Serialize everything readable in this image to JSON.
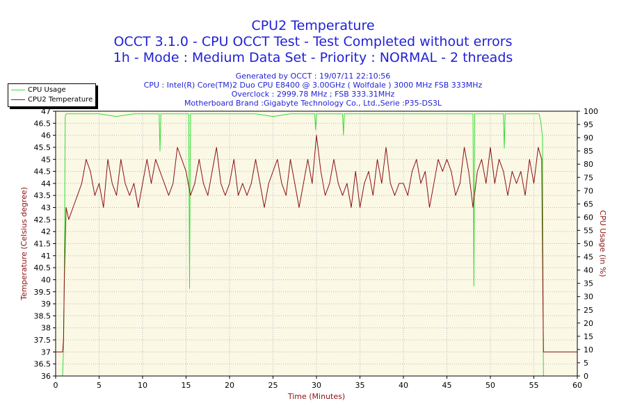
{
  "header": {
    "title": "CPU2 Temperature",
    "subtitle1": "OCCT 3.1.0 - CPU OCCT Test - Test Completed without errors",
    "subtitle2": "1h - Mode : Medium Data Set - Priority : NORMAL - 2 threads",
    "info_lines": [
      "Generated by OCCT : 19/07/11 22:10:56",
      "CPU : Intel(R) Core(TM)2 Duo CPU E8400 @ 3.00GHz ( Wolfdale ) 3000 MHz FSB 333MHz",
      "Overclock : 2999.78 MHz ; FSB 333.31MHz",
      "Motherboard Brand :Gigabyte Technology Co., Ltd.,Serie :P35-DS3L"
    ]
  },
  "legend": {
    "items": [
      {
        "label": "CPU Usage"
      },
      {
        "label": "CPU2 Temperature"
      }
    ]
  },
  "colors": {
    "title": "#1f1fd6",
    "plot_background": "#fbf8e6",
    "grid": "#b8b8b8",
    "usage_line": "#33dd33",
    "temperature_line": "#8b1010",
    "axis_label": "#8b1010"
  },
  "chart_data": {
    "type": "line",
    "xlabel": "Time (Minutes)",
    "ylabel_left": "Temperature (Celsius degree)",
    "ylabel_right": "CPU Usage (in %)",
    "xlim": [
      0,
      60
    ],
    "ylim_left": [
      36,
      47
    ],
    "ylim_right": [
      0,
      100
    ],
    "x_ticks": [
      0,
      5,
      10,
      15,
      20,
      25,
      30,
      35,
      40,
      45,
      50,
      55,
      60
    ],
    "y_ticks_left": [
      "36",
      "36.5",
      "37",
      "37.5",
      "38",
      "38.5",
      "39",
      "39.5",
      "40",
      "40.5",
      "41",
      "41.5",
      "42",
      "42.5",
      "43",
      "43.5",
      "44",
      "44.5",
      "45",
      "45.5",
      "46",
      "46.5",
      "47"
    ],
    "y_ticks_right": [
      0,
      5,
      10,
      15,
      20,
      25,
      30,
      35,
      40,
      45,
      50,
      55,
      60,
      65,
      70,
      75,
      80,
      85,
      90,
      95,
      100
    ],
    "grid": true,
    "legend_position": "top-left",
    "series": [
      {
        "name": "CPU Usage",
        "axis": "right",
        "x": [
          0.8,
          0.9,
          1.0,
          1.1,
          1.2,
          3,
          5,
          7,
          9,
          10,
          11.9,
          12.0,
          12.1,
          14,
          15.3,
          15.4,
          15.5,
          17,
          20,
          23,
          25,
          27,
          29.8,
          29.9,
          30.0,
          32,
          33.0,
          33.1,
          33.2,
          35,
          38,
          40,
          42,
          45,
          48.0,
          48.1,
          48.2,
          50,
          51.5,
          51.6,
          51.7,
          53,
          55.6,
          55.8,
          56.0,
          56.1
        ],
        "y": [
          0,
          10,
          40,
          98,
          99,
          99,
          99,
          98,
          99,
          99,
          99,
          85,
          99,
          99,
          99,
          33,
          99,
          99,
          99,
          99,
          98,
          99,
          99,
          93,
          99,
          99,
          99,
          91,
          99,
          99,
          99,
          99,
          99,
          99,
          99,
          34,
          99,
          99,
          99,
          86,
          99,
          99,
          99,
          96,
          90,
          0
        ]
      },
      {
        "name": "CPU2 Temperature",
        "axis": "left",
        "x": [
          0,
          0.8,
          0.9,
          1.0,
          1.2,
          1.5,
          2.0,
          2.5,
          3.0,
          3.5,
          4.0,
          4.5,
          5.0,
          5.5,
          6.0,
          6.5,
          7.0,
          7.5,
          8.0,
          8.5,
          9.0,
          9.5,
          10.0,
          10.5,
          11.0,
          11.5,
          12.0,
          12.5,
          13.0,
          13.5,
          14.0,
          14.5,
          15.0,
          15.5,
          16.0,
          16.5,
          17.0,
          17.5,
          18.0,
          18.5,
          19.0,
          19.5,
          20.0,
          20.5,
          21.0,
          21.5,
          22.0,
          22.5,
          23.0,
          23.5,
          24.0,
          24.5,
          25.0,
          25.5,
          26.0,
          26.5,
          27.0,
          27.5,
          28.0,
          28.5,
          29.0,
          29.5,
          30.0,
          30.5,
          31.0,
          31.5,
          32.0,
          32.5,
          33.0,
          33.5,
          34.0,
          34.5,
          35.0,
          35.5,
          36.0,
          36.5,
          37.0,
          37.5,
          38.0,
          38.5,
          39.0,
          39.5,
          40.0,
          40.5,
          41.0,
          41.5,
          42.0,
          42.5,
          43.0,
          43.5,
          44.0,
          44.5,
          45.0,
          45.5,
          46.0,
          46.5,
          47.0,
          47.5,
          48.0,
          48.5,
          49.0,
          49.5,
          50.0,
          50.5,
          51.0,
          51.5,
          52.0,
          52.5,
          53.0,
          53.5,
          54.0,
          54.5,
          55.0,
          55.5,
          55.9,
          56.0,
          56.1,
          60
        ],
        "y": [
          37.0,
          37.0,
          37.5,
          40.0,
          43.0,
          42.5,
          43.0,
          43.5,
          44.0,
          45.0,
          44.5,
          43.5,
          44.0,
          43.0,
          45.0,
          44.0,
          43.5,
          45.0,
          44.0,
          43.5,
          44.0,
          43.0,
          44.0,
          45.0,
          44.0,
          45.0,
          44.5,
          44.0,
          43.5,
          44.0,
          45.5,
          45.0,
          44.5,
          43.5,
          44.0,
          45.0,
          44.0,
          43.5,
          44.5,
          45.5,
          44.0,
          43.5,
          44.0,
          45.0,
          43.5,
          44.0,
          43.5,
          44.0,
          45.0,
          44.0,
          43.0,
          44.0,
          44.5,
          45.0,
          44.0,
          43.5,
          45.0,
          44.0,
          43.0,
          44.0,
          45.0,
          44.0,
          46.0,
          44.5,
          43.5,
          44.0,
          45.0,
          44.0,
          43.5,
          44.0,
          43.0,
          44.5,
          43.0,
          44.0,
          44.5,
          43.5,
          45.0,
          44.0,
          45.5,
          44.0,
          43.5,
          44.0,
          44.0,
          43.5,
          44.5,
          45.0,
          44.0,
          44.5,
          43.0,
          44.0,
          45.0,
          44.5,
          45.0,
          44.5,
          43.5,
          44.0,
          45.5,
          44.5,
          43.0,
          44.5,
          45.0,
          44.0,
          45.5,
          44.0,
          45.0,
          44.5,
          43.5,
          44.5,
          44.0,
          44.5,
          43.5,
          45.0,
          44.0,
          45.5,
          45.0,
          41.0,
          37.0,
          37.0
        ]
      }
    ]
  }
}
